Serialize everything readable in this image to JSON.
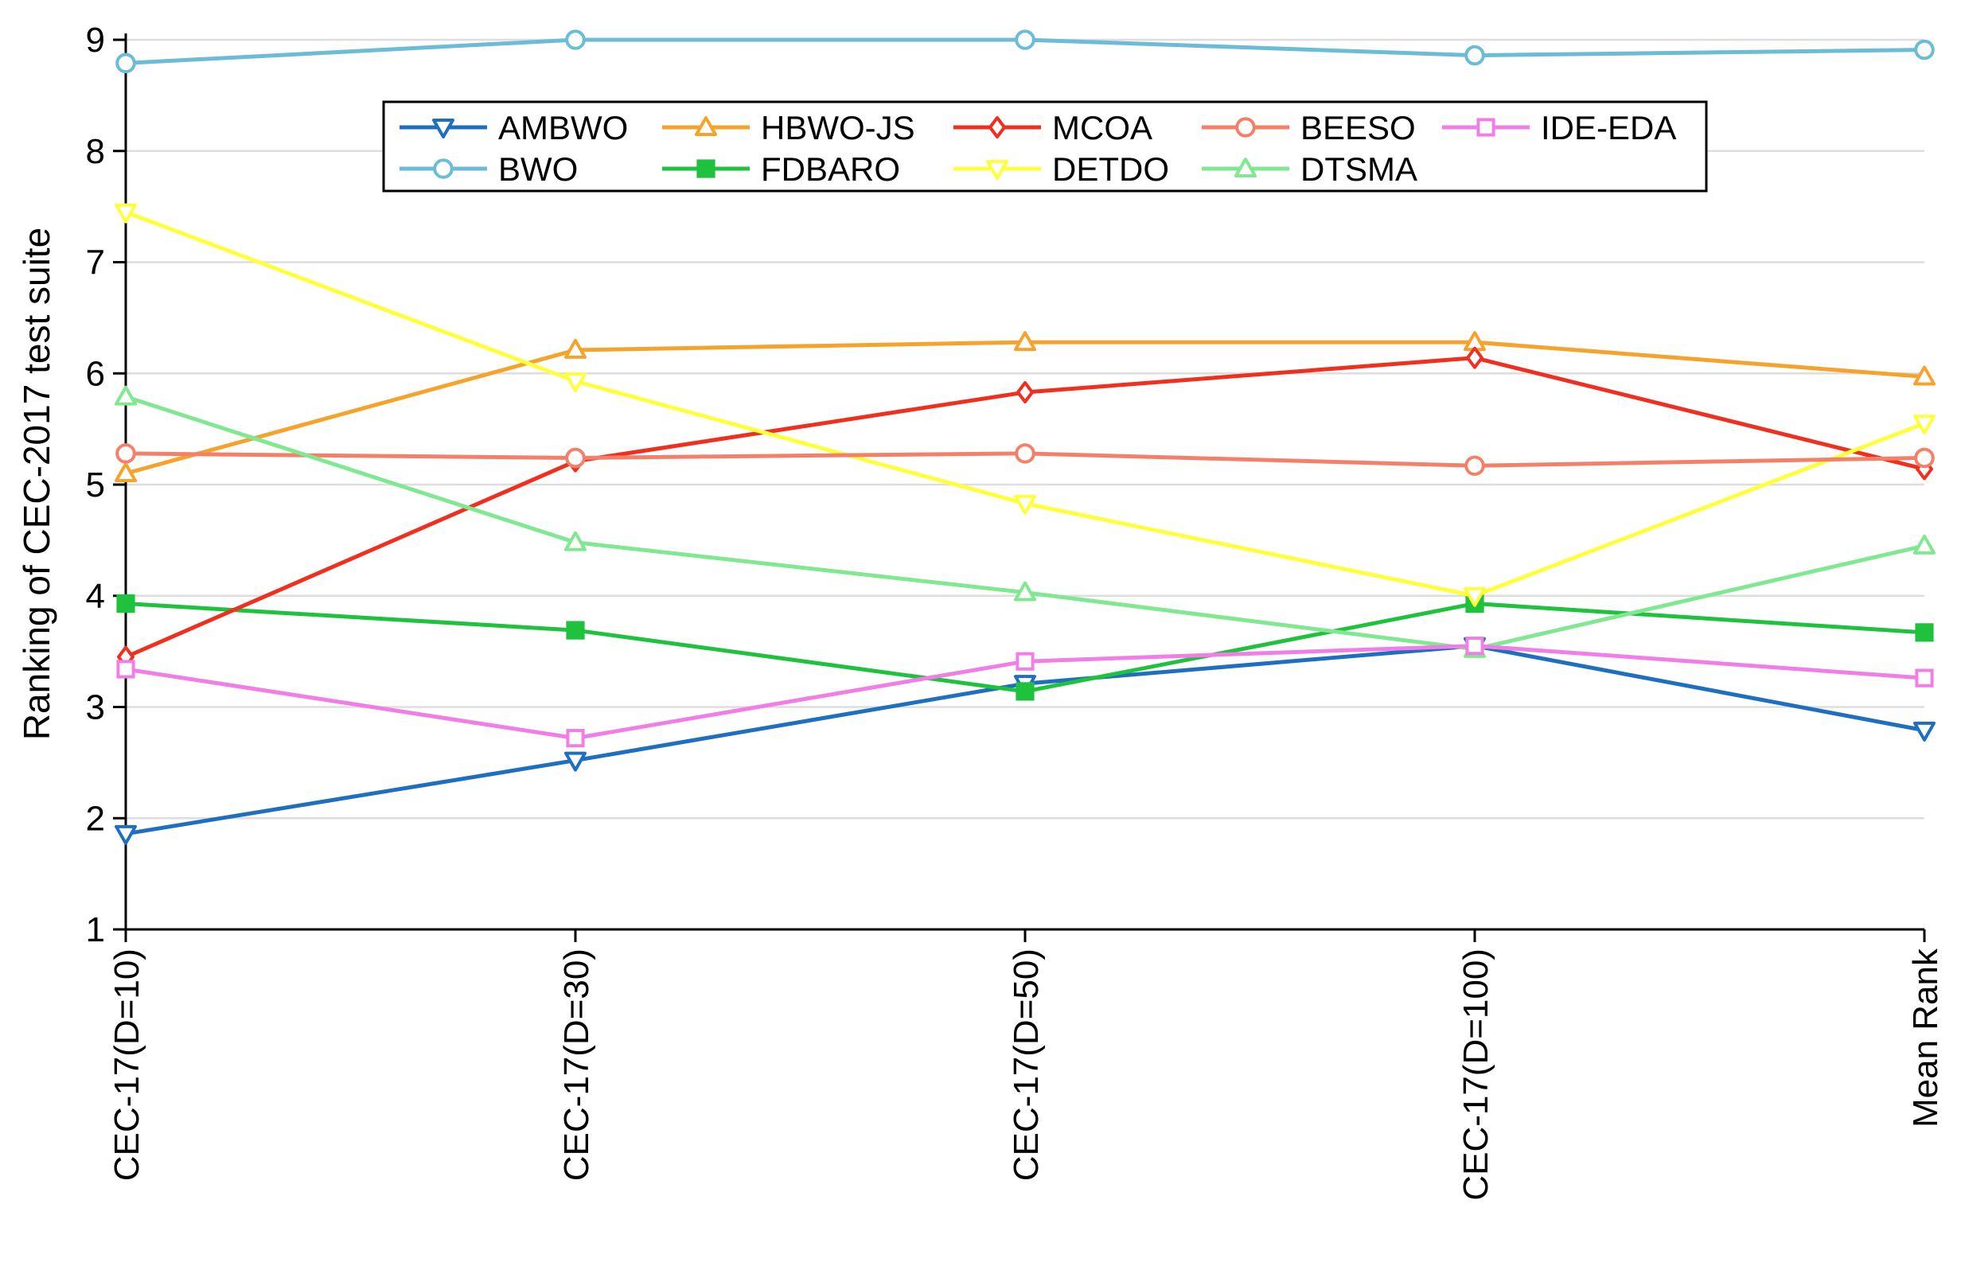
{
  "chart_data": {
    "type": "line",
    "title": "",
    "xlabel": "",
    "ylabel": "Ranking of CEC-2017 test suite",
    "ylim": [
      1,
      9
    ],
    "yticks": [
      1,
      2,
      3,
      4,
      5,
      6,
      7,
      8,
      9
    ],
    "grid": "horizontal",
    "legend_position": "top-center",
    "categories": [
      "CEC-17(D=10)",
      "CEC-17(D=30)",
      "CEC-17(D=50)",
      "CEC-17(D=100)",
      "Mean Rank"
    ],
    "series": [
      {
        "name": "AMBWO",
        "color": "#1f6fc0",
        "marker": "triangle-down",
        "values": [
          1.86,
          2.52,
          3.21,
          3.55,
          2.79
        ]
      },
      {
        "name": "BWO",
        "color": "#6bbcd6",
        "marker": "circle",
        "values": [
          8.79,
          9.0,
          9.0,
          8.86,
          8.91
        ]
      },
      {
        "name": "HBWO-JS",
        "color": "#f5a32b",
        "marker": "triangle-up",
        "values": [
          5.1,
          6.21,
          6.28,
          6.28,
          5.97
        ]
      },
      {
        "name": "FDBARO",
        "color": "#1ec23c",
        "marker": "square-filled",
        "values": [
          3.93,
          3.69,
          3.14,
          3.93,
          3.67
        ]
      },
      {
        "name": "MCOA",
        "color": "#f02f1f",
        "marker": "diamond",
        "values": [
          3.45,
          5.21,
          5.83,
          6.14,
          5.14
        ]
      },
      {
        "name": "DETDO",
        "color": "#ffff3c",
        "marker": "triangle-down",
        "values": [
          7.45,
          5.93,
          4.83,
          4.0,
          5.55
        ]
      },
      {
        "name": "BEESO",
        "color": "#f5806a",
        "marker": "circle",
        "values": [
          5.28,
          5.24,
          5.28,
          5.17,
          5.24
        ]
      },
      {
        "name": "DTSMA",
        "color": "#80e890",
        "marker": "triangle-up",
        "values": [
          5.79,
          4.48,
          4.03,
          3.52,
          4.45
        ]
      },
      {
        "name": "IDE-EDA",
        "color": "#f07ee6",
        "marker": "square",
        "values": [
          3.34,
          2.72,
          3.41,
          3.55,
          3.26
        ]
      }
    ]
  }
}
